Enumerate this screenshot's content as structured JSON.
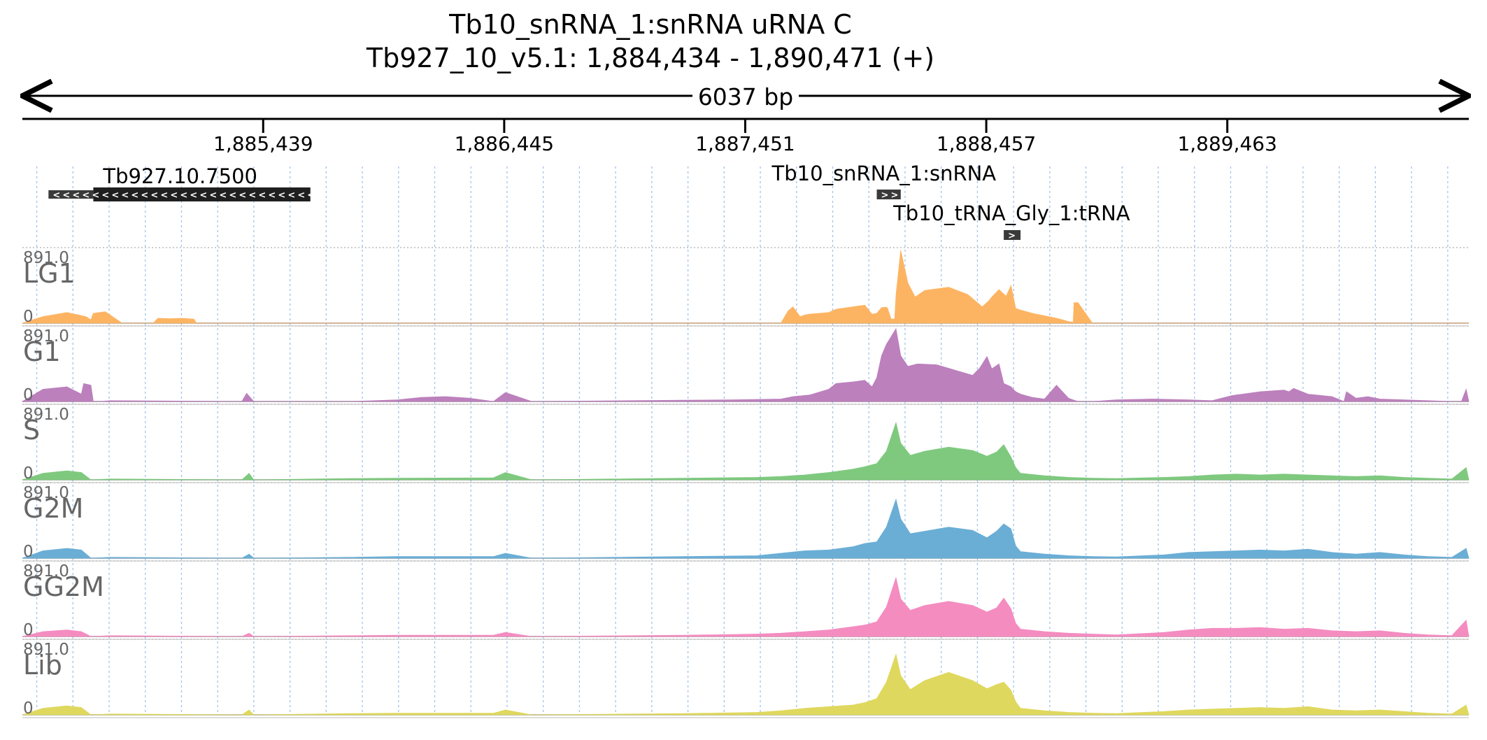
{
  "header": {
    "title": "Tb10_snRNA_1:snRNA  uRNA C",
    "location": "Tb927_10_v5.1: 1,884,434 - 1,890,471 (+)",
    "span_label": "6037 bp"
  },
  "colors": {
    "LG1": "#fdb462",
    "G1": "#bc80bd",
    "S": "#7fc97f",
    "G2M": "#6aaed6",
    "GG2M": "#f48cc0",
    "Lib": "#dfd85e",
    "gene": "#1f1f1f",
    "grid": "#9ec3ea"
  },
  "chart_data": {
    "type": "area",
    "genome": {
      "chrom": "Tb927_10_v5.1",
      "start": 1884434,
      "end": 1890471,
      "strand": "+"
    },
    "axis": {
      "ticks": [
        1885439,
        1886445,
        1887451,
        1888457,
        1889463
      ],
      "tick_labels": [
        "1,885,439",
        "1,886,445",
        "1,887,451",
        "1,888,457",
        "1,889,463"
      ]
    },
    "features": [
      {
        "name": "Tb927.10.7500",
        "start": 1884543,
        "end": 1885636,
        "strand": "-",
        "utr_end": 1884730
      },
      {
        "name": "Tb10_snRNA_1:snRNA",
        "start": 1888000,
        "end": 1888100,
        "strand": "+"
      },
      {
        "name": "Tb10_tRNA_Gly_1:tRNA",
        "start": 1888530,
        "end": 1888600,
        "strand": "+"
      }
    ],
    "tracks": [
      {
        "name": "LG1",
        "max_label": "891.0",
        "min_label": "0",
        "max": 891,
        "x": [
          1884434,
          1884520,
          1884620,
          1884700,
          1884720,
          1884730,
          1884780,
          1884850,
          1884980,
          1885000,
          1885050,
          1885100,
          1885150,
          1885160,
          1885170,
          1885500,
          1887600,
          1887630,
          1887650,
          1887680,
          1887700,
          1887720,
          1887800,
          1887830,
          1887900,
          1887950,
          1887980,
          1888000,
          1888020,
          1888040,
          1888045,
          1888060,
          1888075,
          1888080,
          1888100,
          1888130,
          1888160,
          1888200,
          1888300,
          1888380,
          1888440,
          1888470,
          1888480,
          1888510,
          1888540,
          1888560,
          1888580,
          1888600,
          1888650,
          1888700,
          1888750,
          1888775,
          1888800,
          1888820,
          1888823,
          1888840,
          1888900,
          1890471
        ],
        "y": [
          0,
          80,
          130,
          80,
          40,
          120,
          140,
          0,
          0,
          60,
          55,
          60,
          50,
          0,
          0,
          0,
          0,
          150,
          200,
          80,
          100,
          110,
          130,
          170,
          200,
          220,
          110,
          120,
          190,
          195,
          180,
          50,
          50,
          340,
          891,
          490,
          320,
          400,
          440,
          350,
          200,
          280,
          320,
          410,
          330,
          460,
          180,
          160,
          120,
          90,
          60,
          40,
          20,
          10,
          250,
          250,
          0,
          0
        ]
      },
      {
        "name": "G1",
        "max_label": "891.0",
        "min_label": "0",
        "max": 891,
        "x": [
          1884434,
          1884520,
          1884620,
          1884680,
          1884690,
          1884720,
          1884730,
          1884760,
          1884800,
          1885350,
          1885370,
          1885400,
          1885800,
          1886000,
          1886100,
          1886200,
          1886300,
          1886400,
          1886450,
          1886560,
          1887200,
          1887400,
          1887600,
          1887650,
          1887720,
          1887800,
          1887830,
          1887900,
          1887950,
          1887980,
          1888000,
          1888020,
          1888040,
          1888080,
          1888100,
          1888130,
          1888170,
          1888250,
          1888400,
          1888430,
          1888460,
          1888480,
          1888510,
          1888530,
          1888560,
          1888580,
          1888600,
          1888650,
          1888700,
          1888750,
          1888800,
          1888820,
          1888840,
          1888900,
          1889000,
          1889150,
          1889300,
          1889400,
          1889480,
          1889500,
          1889600,
          1889700,
          1889720,
          1889740,
          1889800,
          1889900,
          1889950,
          1889960,
          1890000,
          1890050,
          1890100,
          1890200,
          1890300,
          1890400,
          1890440,
          1890460,
          1890471
        ],
        "y": [
          0,
          150,
          180,
          90,
          220,
          200,
          0,
          0,
          10,
          0,
          100,
          0,
          0,
          20,
          50,
          60,
          40,
          0,
          110,
          0,
          15,
          20,
          30,
          60,
          80,
          150,
          220,
          240,
          260,
          180,
          290,
          560,
          700,
          891,
          560,
          430,
          460,
          450,
          320,
          410,
          550,
          400,
          460,
          220,
          180,
          120,
          90,
          50,
          30,
          200,
          40,
          20,
          0,
          0,
          20,
          30,
          20,
          10,
          70,
          80,
          120,
          140,
          120,
          160,
          90,
          60,
          0,
          120,
          40,
          60,
          30,
          20,
          10,
          0,
          0,
          150,
          0
        ]
      },
      {
        "name": "S",
        "max_label": "891.0",
        "min_label": "0",
        "max": 891,
        "x": [
          1884434,
          1884520,
          1884620,
          1884680,
          1884720,
          1884800,
          1885350,
          1885380,
          1885400,
          1885800,
          1886000,
          1886400,
          1886450,
          1886560,
          1887200,
          1887500,
          1887600,
          1887700,
          1887800,
          1887900,
          1887950,
          1888000,
          1888040,
          1888080,
          1888100,
          1888140,
          1888200,
          1888300,
          1888400,
          1888460,
          1888500,
          1888530,
          1888560,
          1888580,
          1888600,
          1888700,
          1888800,
          1888900,
          1889000,
          1889200,
          1889300,
          1889400,
          1889500,
          1889600,
          1889700,
          1889800,
          1889900,
          1890000,
          1890100,
          1890200,
          1890300,
          1890400,
          1890460,
          1890471
        ],
        "y": [
          0,
          80,
          110,
          90,
          0,
          10,
          0,
          80,
          0,
          15,
          20,
          25,
          90,
          0,
          20,
          30,
          40,
          60,
          90,
          130,
          160,
          200,
          350,
          700,
          450,
          300,
          350,
          400,
          360,
          290,
          340,
          430,
          280,
          150,
          80,
          50,
          30,
          20,
          15,
          30,
          40,
          60,
          70,
          60,
          70,
          60,
          50,
          40,
          50,
          30,
          20,
          10,
          150,
          0
        ]
      },
      {
        "name": "G2M",
        "max_label": "891.0",
        "min_label": "0",
        "max": 891,
        "x": [
          1884434,
          1884520,
          1884620,
          1884680,
          1884720,
          1884800,
          1885350,
          1885380,
          1885400,
          1885800,
          1886000,
          1886400,
          1886450,
          1886560,
          1887200,
          1887500,
          1887600,
          1887700,
          1887800,
          1887900,
          1887950,
          1888000,
          1888040,
          1888080,
          1888100,
          1888140,
          1888200,
          1888300,
          1888400,
          1888460,
          1888500,
          1888530,
          1888560,
          1888580,
          1888600,
          1888700,
          1888800,
          1888900,
          1889000,
          1889200,
          1889300,
          1889400,
          1889500,
          1889600,
          1889700,
          1889800,
          1889900,
          1890000,
          1890100,
          1890200,
          1890300,
          1890400,
          1890460,
          1890471
        ],
        "y": [
          0,
          90,
          120,
          100,
          0,
          10,
          0,
          50,
          0,
          10,
          20,
          20,
          60,
          0,
          20,
          30,
          60,
          90,
          100,
          140,
          180,
          200,
          380,
          720,
          480,
          300,
          330,
          380,
          340,
          250,
          330,
          420,
          360,
          150,
          80,
          50,
          30,
          20,
          15,
          40,
          70,
          80,
          90,
          100,
          90,
          110,
          70,
          50,
          70,
          40,
          20,
          10,
          120,
          0
        ]
      },
      {
        "name": "GG2M",
        "max_label": "891.0",
        "min_label": "0",
        "max": 891,
        "x": [
          1884434,
          1884520,
          1884620,
          1884680,
          1884720,
          1884800,
          1885350,
          1885380,
          1885400,
          1885800,
          1886000,
          1886400,
          1886450,
          1886560,
          1887200,
          1887500,
          1887600,
          1887700,
          1887800,
          1887900,
          1887950,
          1888000,
          1888040,
          1888080,
          1888100,
          1888140,
          1888200,
          1888300,
          1888400,
          1888460,
          1888500,
          1888530,
          1888560,
          1888580,
          1888600,
          1888700,
          1888800,
          1888900,
          1889000,
          1889200,
          1889300,
          1889400,
          1889500,
          1889600,
          1889700,
          1889800,
          1889900,
          1890000,
          1890100,
          1890200,
          1890300,
          1890400,
          1890460,
          1890471
        ],
        "y": [
          0,
          60,
          80,
          60,
          0,
          10,
          0,
          40,
          0,
          10,
          15,
          15,
          50,
          0,
          15,
          30,
          40,
          60,
          80,
          120,
          140,
          180,
          360,
          720,
          460,
          320,
          380,
          430,
          380,
          300,
          350,
          470,
          340,
          160,
          90,
          60,
          40,
          30,
          20,
          50,
          80,
          100,
          100,
          110,
          90,
          100,
          70,
          60,
          70,
          40,
          20,
          10,
          200,
          0
        ]
      },
      {
        "name": "Lib",
        "max_label": "891.0",
        "min_label": "0",
        "max": 891,
        "x": [
          1884434,
          1884520,
          1884620,
          1884680,
          1884720,
          1884800,
          1885350,
          1885380,
          1885400,
          1885800,
          1886000,
          1886400,
          1886450,
          1886560,
          1887200,
          1887500,
          1887600,
          1887700,
          1887800,
          1887900,
          1887950,
          1888000,
          1888040,
          1888080,
          1888100,
          1888140,
          1888200,
          1888300,
          1888400,
          1888460,
          1888500,
          1888530,
          1888560,
          1888580,
          1888600,
          1888700,
          1888800,
          1888900,
          1889000,
          1889200,
          1889300,
          1889400,
          1889500,
          1889600,
          1889700,
          1889800,
          1889900,
          1890000,
          1890100,
          1890200,
          1890300,
          1890400,
          1890460,
          1890471
        ],
        "y": [
          0,
          80,
          110,
          90,
          0,
          10,
          0,
          60,
          0,
          15,
          20,
          20,
          60,
          0,
          15,
          30,
          50,
          80,
          100,
          120,
          150,
          200,
          400,
          740,
          480,
          310,
          420,
          520,
          420,
          320,
          370,
          400,
          300,
          160,
          80,
          50,
          30,
          20,
          15,
          40,
          60,
          70,
          80,
          90,
          80,
          100,
          60,
          50,
          60,
          40,
          20,
          10,
          120,
          0
        ]
      }
    ]
  }
}
